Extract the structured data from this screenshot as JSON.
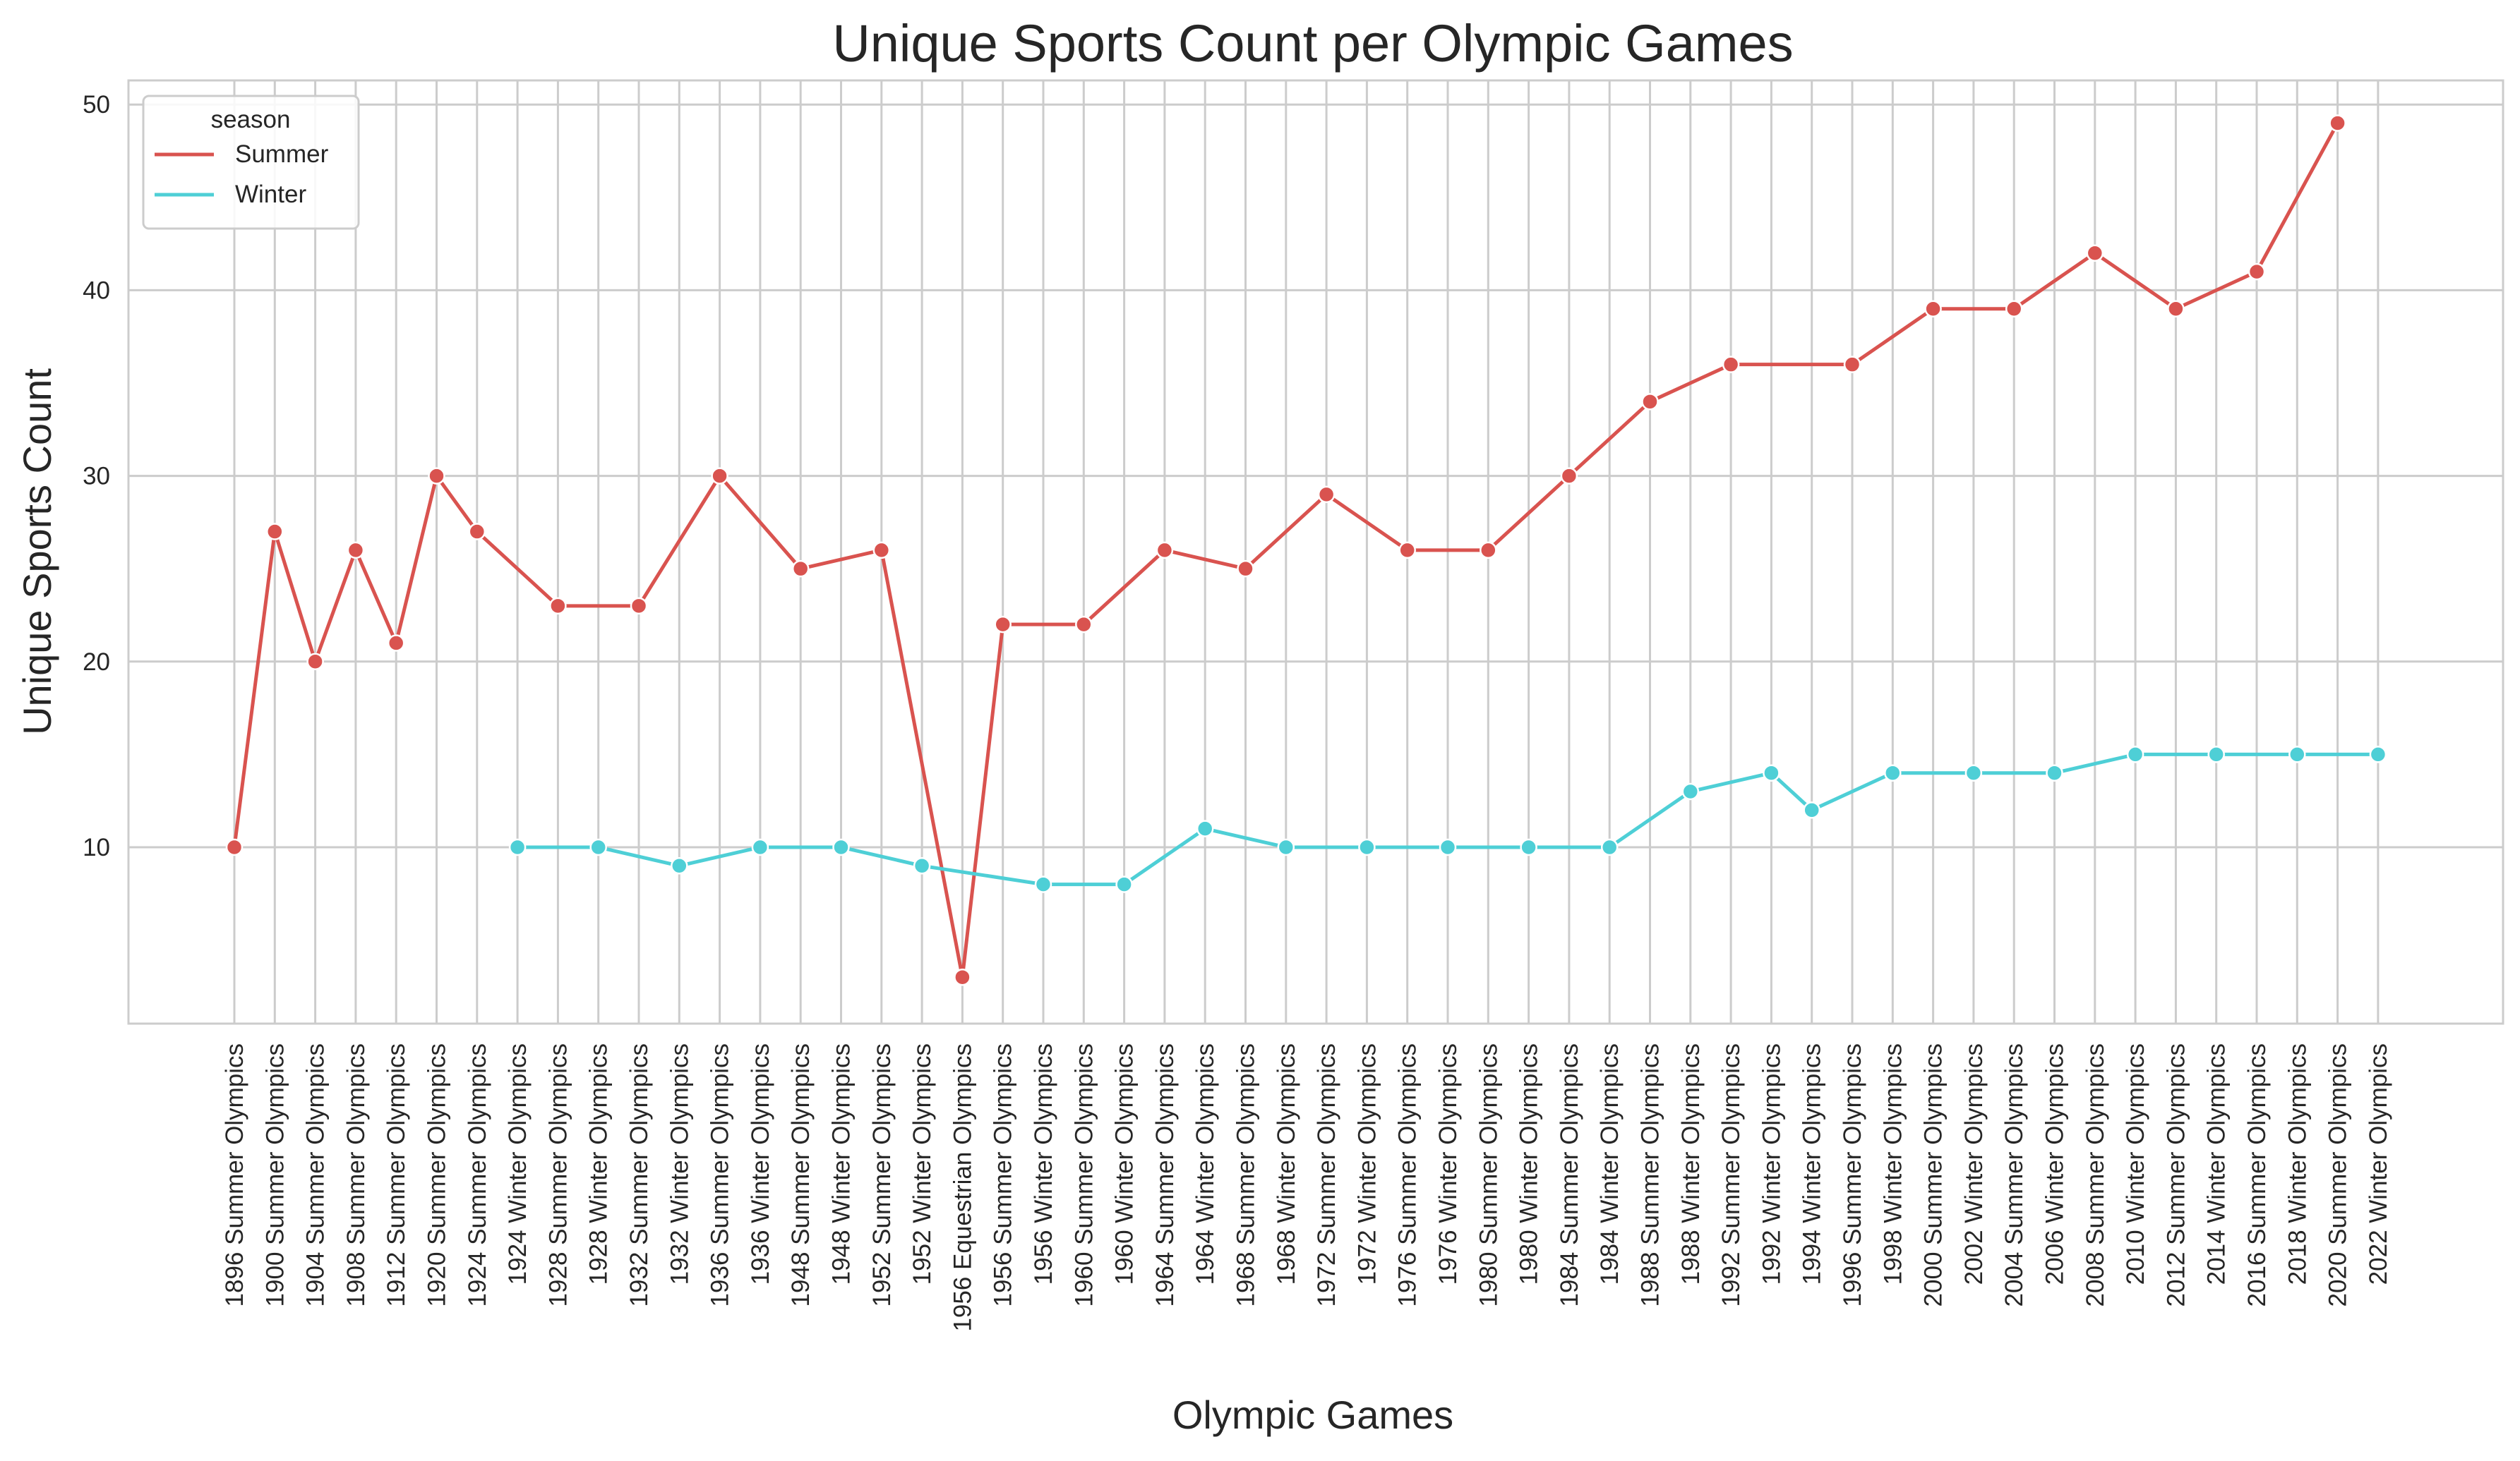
{
  "chart_data": {
    "type": "line",
    "title": "Unique Sports Count per Olympic Games",
    "xlabel": "Olympic Games",
    "ylabel": "Unique Sports Count",
    "ylim": [
      0.5,
      51.3
    ],
    "yticks": [
      10,
      20,
      30,
      40,
      50
    ],
    "grid": true,
    "legend": {
      "title": "season",
      "position": "top-left"
    },
    "categories": [
      "1896 Summer Olympics",
      "1900 Summer Olympics",
      "1904 Summer Olympics",
      "1908 Summer Olympics",
      "1912 Summer Olympics",
      "1920 Summer Olympics",
      "1924 Summer Olympics",
      "1924 Winter Olympics",
      "1928 Summer Olympics",
      "1928 Winter Olympics",
      "1932 Summer Olympics",
      "1932 Winter Olympics",
      "1936 Summer Olympics",
      "1936 Winter Olympics",
      "1948 Summer Olympics",
      "1948 Winter Olympics",
      "1952 Summer Olympics",
      "1952 Winter Olympics",
      "1956 Equestrian Olympics",
      "1956 Summer Olympics",
      "1956 Winter Olympics",
      "1960 Summer Olympics",
      "1960 Winter Olympics",
      "1964 Summer Olympics",
      "1964 Winter Olympics",
      "1968 Summer Olympics",
      "1968 Winter Olympics",
      "1972 Summer Olympics",
      "1972 Winter Olympics",
      "1976 Summer Olympics",
      "1976 Winter Olympics",
      "1980 Summer Olympics",
      "1980 Winter Olympics",
      "1984 Summer Olympics",
      "1984 Winter Olympics",
      "1988 Summer Olympics",
      "1988 Winter Olympics",
      "1992 Summer Olympics",
      "1992 Winter Olympics",
      "1994 Winter Olympics",
      "1996 Summer Olympics",
      "1998 Winter Olympics",
      "2000 Summer Olympics",
      "2002 Winter Olympics",
      "2004 Summer Olympics",
      "2006 Winter Olympics",
      "2008 Summer Olympics",
      "2010 Winter Olympics",
      "2012 Summer Olympics",
      "2014 Winter Olympics",
      "2016 Summer Olympics",
      "2018 Winter Olympics",
      "2020 Summer Olympics",
      "2022 Winter Olympics"
    ],
    "series": [
      {
        "name": "Summer",
        "color": "#d9534f",
        "points": [
          [
            "1896 Summer Olympics",
            10
          ],
          [
            "1900 Summer Olympics",
            27
          ],
          [
            "1904 Summer Olympics",
            20
          ],
          [
            "1908 Summer Olympics",
            26
          ],
          [
            "1912 Summer Olympics",
            21
          ],
          [
            "1920 Summer Olympics",
            30
          ],
          [
            "1924 Summer Olympics",
            27
          ],
          [
            "1928 Summer Olympics",
            23
          ],
          [
            "1932 Summer Olympics",
            23
          ],
          [
            "1936 Summer Olympics",
            30
          ],
          [
            "1948 Summer Olympics",
            25
          ],
          [
            "1952 Summer Olympics",
            26
          ],
          [
            "1956 Equestrian Olympics",
            3
          ],
          [
            "1956 Summer Olympics",
            22
          ],
          [
            "1960 Summer Olympics",
            22
          ],
          [
            "1964 Summer Olympics",
            26
          ],
          [
            "1968 Summer Olympics",
            25
          ],
          [
            "1972 Summer Olympics",
            29
          ],
          [
            "1976 Summer Olympics",
            26
          ],
          [
            "1980 Summer Olympics",
            26
          ],
          [
            "1984 Summer Olympics",
            30
          ],
          [
            "1988 Summer Olympics",
            34
          ],
          [
            "1992 Summer Olympics",
            36
          ],
          [
            "1996 Summer Olympics",
            36
          ],
          [
            "2000 Summer Olympics",
            39
          ],
          [
            "2004 Summer Olympics",
            39
          ],
          [
            "2008 Summer Olympics",
            42
          ],
          [
            "2012 Summer Olympics",
            39
          ],
          [
            "2016 Summer Olympics",
            41
          ],
          [
            "2020 Summer Olympics",
            49
          ]
        ]
      },
      {
        "name": "Winter",
        "color": "#4ecfd6",
        "points": [
          [
            "1924 Winter Olympics",
            10
          ],
          [
            "1928 Winter Olympics",
            10
          ],
          [
            "1932 Winter Olympics",
            9
          ],
          [
            "1936 Winter Olympics",
            10
          ],
          [
            "1948 Winter Olympics",
            10
          ],
          [
            "1952 Winter Olympics",
            9
          ],
          [
            "1956 Winter Olympics",
            8
          ],
          [
            "1960 Winter Olympics",
            8
          ],
          [
            "1964 Winter Olympics",
            11
          ],
          [
            "1968 Winter Olympics",
            10
          ],
          [
            "1972 Winter Olympics",
            10
          ],
          [
            "1976 Winter Olympics",
            10
          ],
          [
            "1980 Winter Olympics",
            10
          ],
          [
            "1984 Winter Olympics",
            10
          ],
          [
            "1988 Winter Olympics",
            13
          ],
          [
            "1992 Winter Olympics",
            14
          ],
          [
            "1994 Winter Olympics",
            12
          ],
          [
            "1998 Winter Olympics",
            14
          ],
          [
            "2002 Winter Olympics",
            14
          ],
          [
            "2006 Winter Olympics",
            14
          ],
          [
            "2010 Winter Olympics",
            15
          ],
          [
            "2014 Winter Olympics",
            15
          ],
          [
            "2018 Winter Olympics",
            15
          ],
          [
            "2022 Winter Olympics",
            15
          ]
        ]
      }
    ]
  }
}
